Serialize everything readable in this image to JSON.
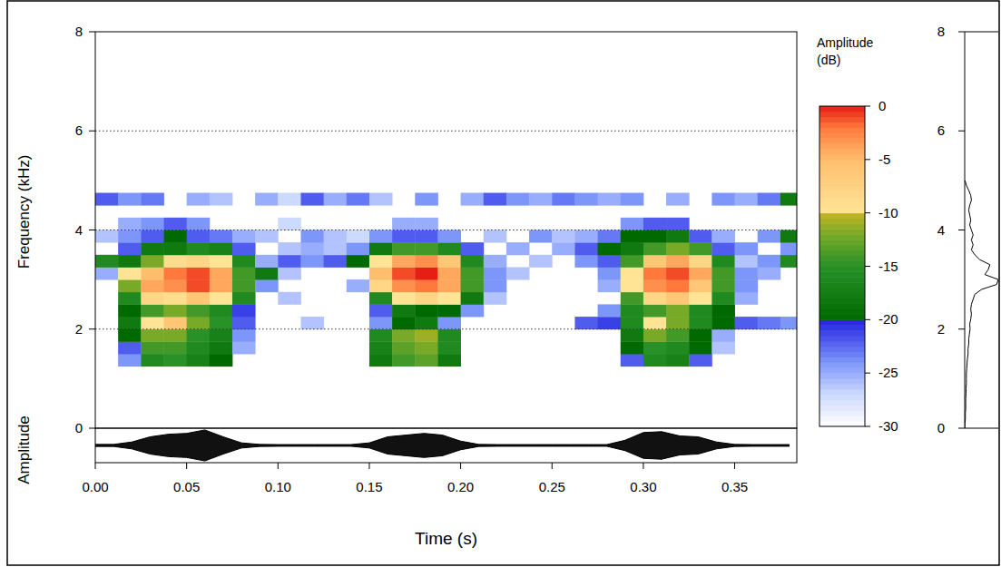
{
  "chart_data": [
    {
      "type": "heatmap",
      "ylabel": "Frequency (kHz)",
      "xlim": [
        0,
        0.384
      ],
      "ylim": [
        0,
        8
      ],
      "yticks": [
        0,
        2,
        4,
        6,
        8
      ],
      "grid": true,
      "tick_labels": "y",
      "time_bins": [
        0,
        0.0125,
        0.025,
        0.0375,
        0.05,
        0.0625,
        0.075,
        0.0875,
        0.1,
        0.1125,
        0.125,
        0.1375,
        0.15,
        0.1625,
        0.175,
        0.1875,
        0.2,
        0.2125,
        0.225,
        0.2375,
        0.25,
        0.2625,
        0.275,
        0.2875,
        0.3,
        0.3125,
        0.325,
        0.3375,
        0.35,
        0.3625,
        0.375,
        0.3875
      ],
      "frequency_bins": [
        1.0,
        1.25,
        1.5,
        1.75,
        2.0,
        2.25,
        2.5,
        2.75,
        3.0,
        3.25,
        3.5,
        3.75,
        4.0,
        4.25,
        4.5,
        4.75,
        5.0
      ],
      "cells": [
        [
          null,
          null,
          null,
          null,
          null,
          null,
          null,
          null,
          -25,
          -16,
          null,
          -26,
          null,
          null,
          -22,
          null
        ],
        [
          null,
          -24,
          -22,
          -20,
          -18,
          -20,
          -16,
          -12,
          -10,
          -18,
          -22,
          -24,
          -25,
          null,
          -24,
          null
        ],
        [
          null,
          -16,
          -14,
          -12,
          -10,
          -14,
          -8,
          -4,
          -5,
          -12,
          -18,
          -22,
          -24,
          null,
          -23,
          null
        ],
        [
          null,
          -15,
          -14,
          -12,
          -6,
          -12,
          -9,
          -3,
          -2,
          -9,
          -18,
          -20,
          -22,
          null,
          null,
          null
        ],
        [
          null,
          -17,
          -16,
          -15,
          -12,
          -14,
          -6,
          -1,
          -1,
          -8,
          -16,
          -22,
          -24,
          null,
          -25,
          null
        ],
        [
          null,
          -20,
          -18,
          -17,
          -15,
          -16,
          -10,
          -4,
          -4,
          -10,
          -17,
          -23,
          null,
          null,
          -26,
          null
        ],
        [
          null,
          null,
          -25,
          -24,
          -22,
          -21,
          -16,
          -14,
          -14,
          -16,
          -22,
          -25,
          null,
          null,
          null,
          null
        ],
        [
          null,
          null,
          null,
          null,
          null,
          null,
          null,
          -24,
          -18,
          -25,
          null,
          -26,
          null,
          null,
          -25,
          null
        ],
        [
          null,
          null,
          null,
          null,
          null,
          null,
          -26,
          null,
          -26,
          -22,
          -26,
          null,
          -27,
          null,
          -27,
          null
        ],
        [
          null,
          null,
          null,
          null,
          -26,
          null,
          null,
          null,
          null,
          -24,
          -25,
          -24,
          null,
          null,
          -22,
          null
        ],
        [
          null,
          null,
          null,
          null,
          null,
          null,
          null,
          null,
          null,
          -22,
          -26,
          -26,
          null,
          null,
          -25,
          null
        ],
        [
          null,
          null,
          null,
          null,
          null,
          null,
          null,
          -25,
          null,
          -20,
          -24,
          -27,
          null,
          null,
          -23,
          null
        ],
        [
          null,
          -18,
          -17,
          -16,
          -24,
          -22,
          -16,
          -8,
          -5,
          -10,
          -18,
          -24,
          null,
          null,
          -26,
          null
        ],
        [
          null,
          -14,
          -13,
          -12,
          -20,
          -18,
          -10,
          -3,
          -1,
          -4,
          -14,
          -22,
          -25,
          null,
          null,
          null
        ],
        [
          null,
          -13,
          -12,
          -11,
          -18,
          -20,
          -8,
          -2,
          0,
          -3,
          -14,
          -22,
          -25,
          null,
          -24,
          null
        ],
        [
          null,
          -18,
          -16,
          -16,
          -24,
          -20,
          -10,
          -4,
          -4,
          -6,
          -16,
          -24,
          null,
          null,
          null,
          null
        ],
        [
          null,
          null,
          null,
          null,
          null,
          -24,
          -18,
          -14,
          -14,
          -16,
          -22,
          null,
          null,
          null,
          -25,
          null
        ],
        [
          null,
          null,
          null,
          null,
          null,
          null,
          -26,
          -24,
          -24,
          -25,
          null,
          -26,
          null,
          null,
          -22,
          null
        ],
        [
          null,
          null,
          null,
          null,
          null,
          null,
          null,
          null,
          -26,
          null,
          -25,
          null,
          null,
          null,
          -24,
          null
        ],
        [
          null,
          null,
          null,
          null,
          null,
          null,
          null,
          null,
          null,
          -26,
          null,
          -24,
          null,
          null,
          -25,
          null
        ],
        [
          null,
          null,
          null,
          null,
          null,
          null,
          null,
          null,
          null,
          null,
          -25,
          -26,
          null,
          null,
          -23,
          null
        ],
        [
          null,
          null,
          null,
          null,
          -22,
          null,
          null,
          null,
          null,
          -24,
          -22,
          -25,
          null,
          null,
          -24,
          null
        ],
        [
          null,
          null,
          null,
          null,
          -21,
          -24,
          null,
          -25,
          -24,
          -22,
          -20,
          -23,
          null,
          null,
          -25,
          null
        ],
        [
          null,
          -22,
          -20,
          -18,
          -16,
          -16,
          -14,
          -10,
          -10,
          -14,
          -18,
          -20,
          -24,
          null,
          -24,
          null
        ],
        [
          null,
          -16,
          -15,
          -12,
          -10,
          -14,
          -8,
          -3,
          -2,
          -6,
          -14,
          -20,
          -22,
          null,
          null,
          null
        ],
        [
          null,
          -17,
          -16,
          -14,
          -12,
          -12,
          -6,
          -2,
          -1,
          -4,
          -12,
          -18,
          -22,
          null,
          -25,
          null
        ],
        [
          null,
          -22,
          -20,
          -20,
          -16,
          -16,
          -10,
          -6,
          -4,
          -8,
          -14,
          -22,
          null,
          null,
          null,
          null
        ],
        [
          null,
          null,
          -26,
          -25,
          -20,
          -20,
          -16,
          -14,
          -14,
          -16,
          -22,
          -25,
          null,
          null,
          -24,
          null
        ],
        [
          null,
          null,
          null,
          null,
          -22,
          null,
          -25,
          -24,
          -24,
          -26,
          -24,
          null,
          null,
          null,
          -25,
          null
        ],
        [
          null,
          null,
          null,
          null,
          -23,
          null,
          null,
          null,
          -25,
          -24,
          null,
          -24,
          null,
          null,
          -23,
          null
        ],
        [
          null,
          null,
          null,
          null,
          -24,
          null,
          null,
          null,
          null,
          -16,
          -24,
          -18,
          null,
          null,
          -18,
          null
        ]
      ],
      "colorbar": {
        "title": "Amplitude (dB)",
        "range": [
          -30,
          0
        ],
        "ticks": [
          0,
          -5,
          -10,
          -15,
          -20,
          -25,
          -30
        ]
      }
    },
    {
      "type": "area",
      "ylabel": "Amplitude",
      "xlabel": "Time (s)",
      "xlim": [
        0,
        0.384
      ],
      "ylim": [
        -1,
        1
      ],
      "tick_labels": "x",
      "xticks": [
        {
          "value": 0,
          "label": "0.00"
        },
        {
          "value": 0.05,
          "label": "0.05"
        },
        {
          "value": 0.1,
          "label": "0.10"
        },
        {
          "value": 0.15,
          "label": "0.15"
        },
        {
          "value": 0.2,
          "label": "0.20"
        },
        {
          "value": 0.25,
          "label": "0.25"
        },
        {
          "value": 0.3,
          "label": "0.30"
        },
        {
          "value": 0.35,
          "label": "0.35"
        }
      ],
      "x": [
        0,
        0.01,
        0.02,
        0.03,
        0.04,
        0.05,
        0.06,
        0.07,
        0.08,
        0.09,
        0.1,
        0.11,
        0.12,
        0.13,
        0.14,
        0.15,
        0.16,
        0.17,
        0.18,
        0.19,
        0.2,
        0.21,
        0.22,
        0.23,
        0.24,
        0.25,
        0.26,
        0.27,
        0.28,
        0.29,
        0.3,
        0.31,
        0.32,
        0.33,
        0.34,
        0.35,
        0.36,
        0.37,
        0.38
      ],
      "values": [
        0.06,
        0.06,
        0.2,
        0.5,
        0.65,
        0.7,
        0.9,
        0.5,
        0.15,
        0.06,
        0.05,
        0.05,
        0.05,
        0.05,
        0.05,
        0.15,
        0.5,
        0.6,
        0.7,
        0.6,
        0.25,
        0.06,
        0.05,
        0.05,
        0.05,
        0.05,
        0.05,
        0.05,
        0.05,
        0.3,
        0.75,
        0.8,
        0.55,
        0.5,
        0.2,
        0.06,
        0.05,
        0.05,
        0.05
      ]
    },
    {
      "type": "line",
      "orientation": "horizontal",
      "xlim": [
        0,
        8
      ],
      "ylim": [
        0,
        1
      ],
      "xticks": [
        0,
        2,
        4,
        6,
        8
      ],
      "tick_labels": "x",
      "x": [
        0,
        0.1,
        0.2,
        0.3,
        0.4,
        0.5,
        0.6,
        0.7,
        0.8,
        0.9,
        1.0,
        1.1,
        1.2,
        1.3,
        1.4,
        1.5,
        1.6,
        1.7,
        1.8,
        1.9,
        2.0,
        2.1,
        2.2,
        2.3,
        2.4,
        2.5,
        2.6,
        2.7,
        2.8,
        2.9,
        3.0,
        3.1,
        3.2,
        3.3,
        3.4,
        3.5,
        3.6,
        3.7,
        3.8,
        3.9,
        4.0,
        4.1,
        4.2,
        4.3,
        4.4,
        4.5,
        4.6,
        4.7,
        4.8,
        4.9,
        5.0
      ],
      "values": [
        0,
        0.01,
        0.02,
        0.02,
        0.03,
        0.03,
        0.03,
        0.04,
        0.04,
        0.05,
        0.05,
        0.05,
        0.06,
        0.07,
        0.08,
        0.1,
        0.1,
        0.12,
        0.12,
        0.14,
        0.16,
        0.15,
        0.18,
        0.2,
        0.18,
        0.2,
        0.25,
        0.3,
        0.5,
        0.95,
        1.0,
        0.6,
        0.7,
        0.75,
        0.45,
        0.3,
        0.2,
        0.25,
        0.2,
        0.25,
        0.2,
        0.15,
        0.18,
        0.15,
        0.12,
        0.15,
        0.2,
        0.18,
        0.12,
        0.05,
        0.01
      ]
    }
  ]
}
